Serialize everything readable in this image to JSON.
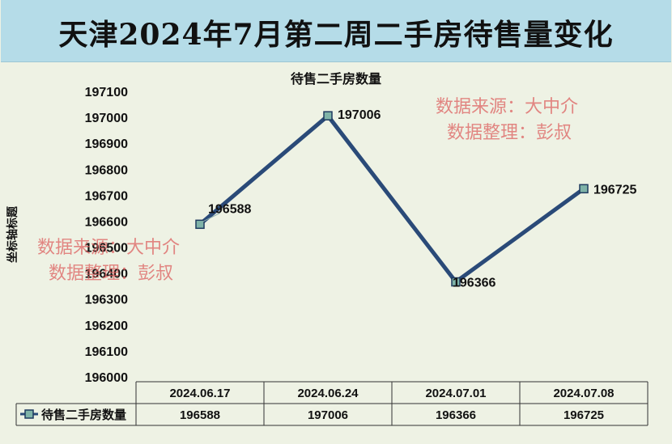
{
  "page_title": "天津2024年7月第二周二手房待售量变化",
  "watermarks": [
    {
      "line1": "数据来源：大中介",
      "line2": "数据整理：彭叔"
    },
    {
      "line1": "数据来源：大中介",
      "line2": "数据整理：彭叔"
    }
  ],
  "chart_data": {
    "type": "line",
    "title": "待售二手房数量",
    "xlabel": "",
    "ylabel": "坐标轴标题",
    "ylim": [
      196000,
      197100
    ],
    "yticks": [
      196000,
      196100,
      196200,
      196300,
      196400,
      196500,
      196600,
      196700,
      196800,
      196900,
      197000,
      197100
    ],
    "categories": [
      "2024.06.17",
      "2024.06.24",
      "2024.07.01",
      "2024.07.08"
    ],
    "series": [
      {
        "name": "待售二手房数量",
        "values": [
          196588,
          197006,
          196366,
          196725
        ]
      }
    ],
    "data_table": true,
    "grid": false,
    "colors": {
      "line": "#2a4a78",
      "marker_fill": "#7fb3a8",
      "marker_edge": "#1f3a5f"
    }
  }
}
